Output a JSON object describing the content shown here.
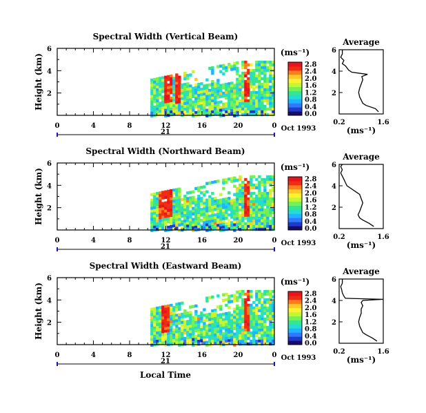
{
  "figure": {
    "xlabel": "Local Time",
    "date_label": "Oct 1993",
    "day_label": "21",
    "height_label": "Height (km)",
    "units_label": "(ms⁻¹)",
    "average_title": "Average"
  },
  "colors": {
    "colormap": [
      "#1a0a6e",
      "#1e3cc8",
      "#2f78ff",
      "#1fb4ff",
      "#23dcd2",
      "#37e68c",
      "#78f050",
      "#c8f532",
      "#fff032",
      "#ffc828",
      "#ff7d1e",
      "#f02d14",
      "#e6141e"
    ],
    "axis": "#000000",
    "marker": "#1414c8"
  },
  "chart_data": [
    {
      "type": "heatmap",
      "title": "Spectral Width (Vertical Beam)",
      "xlabel": "",
      "ylabel": "Height (km)",
      "x_ticks": [
        "0",
        "4",
        "8",
        "12",
        "16",
        "20",
        "0"
      ],
      "y_ticks": [
        "2",
        "4",
        "6"
      ],
      "xlim": [
        0,
        24
      ],
      "ylim": [
        0,
        6
      ],
      "data_start_hour": 10.3,
      "colorbar": {
        "label": "(ms⁻¹)",
        "ticks": [
          "0.0",
          "0.4",
          "0.8",
          "1.2",
          "1.6",
          "2.0",
          "2.4",
          "2.8"
        ],
        "range": [
          0.0,
          2.8
        ]
      },
      "highlights": [
        {
          "hour_start": 11.8,
          "hour_end": 12.6,
          "height_top": 4.3,
          "level": "high"
        },
        {
          "hour_start": 12.8,
          "hour_end": 13.5,
          "height_top": 3.8,
          "level": "high"
        },
        {
          "hour_start": 20.6,
          "hour_end": 21.2,
          "height_top": 5.2,
          "level": "high"
        }
      ],
      "average_profile": {
        "title": "Average",
        "xlabel": "(ms⁻¹)",
        "x_ticks": [
          "0.2",
          "1.6"
        ],
        "xlim": [
          0.2,
          1.6
        ],
        "y_ticks": [
          "2",
          "4",
          "6"
        ],
        "ylim": [
          0,
          6
        ],
        "heights": [
          0.2,
          0.5,
          0.8,
          1.0,
          1.3,
          1.6,
          2.0,
          2.4,
          2.8,
          3.2,
          3.5,
          3.7,
          3.9,
          4.1,
          4.3,
          4.5,
          4.7,
          5.0,
          5.3,
          5.6,
          6.0
        ],
        "values": [
          1.45,
          1.35,
          1.05,
          0.95,
          0.9,
          0.85,
          0.82,
          0.85,
          0.9,
          0.95,
          0.92,
          1.1,
          0.6,
          0.5,
          0.45,
          0.4,
          0.3,
          0.35,
          0.25,
          0.3,
          0.3
        ]
      }
    },
    {
      "type": "heatmap",
      "title": "Spectral Width (Northward Beam)",
      "xlabel": "",
      "ylabel": "Height (km)",
      "x_ticks": [
        "0",
        "4",
        "8",
        "12",
        "16",
        "20",
        "0"
      ],
      "y_ticks": [
        "2",
        "4",
        "6"
      ],
      "xlim": [
        0,
        24
      ],
      "ylim": [
        0,
        6
      ],
      "data_start_hour": 10.3,
      "colorbar": {
        "label": "(ms⁻¹)",
        "ticks": [
          "0.0",
          "0.4",
          "0.8",
          "1.2",
          "1.6",
          "2.0",
          "2.4",
          "2.8"
        ],
        "range": [
          0.0,
          2.8
        ]
      },
      "highlights": [
        {
          "hour_start": 11.0,
          "hour_end": 12.6,
          "height_top": 4.5,
          "level": "high"
        },
        {
          "hour_start": 20.5,
          "hour_end": 21.1,
          "height_top": 5.0,
          "level": "high"
        }
      ],
      "average_profile": {
        "title": "Average",
        "xlabel": "(ms⁻¹)",
        "x_ticks": [
          "0.2",
          "1.6"
        ],
        "xlim": [
          0.2,
          1.6
        ],
        "y_ticks": [
          "2",
          "4",
          "6"
        ],
        "ylim": [
          0,
          6
        ],
        "heights": [
          0.2,
          0.5,
          0.8,
          1.0,
          1.3,
          1.6,
          2.0,
          2.4,
          2.8,
          3.2,
          3.5,
          3.8,
          4.0,
          4.3,
          4.6,
          4.9,
          5.2,
          5.5,
          5.8,
          6.0
        ],
        "values": [
          1.3,
          1.15,
          0.95,
          0.85,
          0.8,
          0.85,
          0.9,
          0.95,
          0.9,
          0.85,
          0.7,
          0.55,
          0.45,
          0.4,
          0.35,
          0.3,
          0.25,
          0.3,
          0.25,
          0.3
        ]
      }
    },
    {
      "type": "heatmap",
      "title": "Spectral Width (Eastward Beam)",
      "xlabel": "Local Time",
      "ylabel": "Height (km)",
      "x_ticks": [
        "0",
        "4",
        "8",
        "12",
        "16",
        "20",
        "0"
      ],
      "y_ticks": [
        "2",
        "4",
        "6"
      ],
      "xlim": [
        0,
        24
      ],
      "ylim": [
        0,
        6
      ],
      "data_start_hour": 10.3,
      "colorbar": {
        "label": "(ms⁻¹)",
        "ticks": [
          "0.0",
          "0.4",
          "0.8",
          "1.2",
          "1.6",
          "2.0",
          "2.4",
          "2.8"
        ],
        "range": [
          0.0,
          2.8
        ]
      },
      "highlights": [
        {
          "hour_start": 11.5,
          "hour_end": 12.3,
          "height_top": 4.4,
          "level": "high"
        },
        {
          "hour_start": 20.6,
          "hour_end": 21.2,
          "height_top": 5.2,
          "level": "high"
        }
      ],
      "average_profile": {
        "title": "Average",
        "xlabel": "(ms⁻¹)",
        "x_ticks": [
          "0.2",
          "1.6"
        ],
        "xlim": [
          0.2,
          1.6
        ],
        "y_ticks": [
          "2",
          "4",
          "6"
        ],
        "ylim": [
          0,
          6
        ],
        "heights": [
          0.2,
          0.5,
          0.8,
          1.0,
          1.3,
          1.6,
          2.0,
          2.4,
          2.8,
          3.2,
          3.5,
          3.8,
          4.0,
          4.1,
          4.2,
          4.4,
          4.7,
          5.0,
          5.3,
          5.6,
          6.0
        ],
        "values": [
          1.4,
          1.25,
          1.05,
          0.95,
          0.9,
          0.85,
          0.82,
          0.85,
          0.9,
          0.9,
          0.95,
          0.9,
          0.95,
          1.6,
          0.4,
          0.35,
          0.3,
          0.28,
          0.25,
          0.3,
          0.3
        ]
      }
    }
  ]
}
